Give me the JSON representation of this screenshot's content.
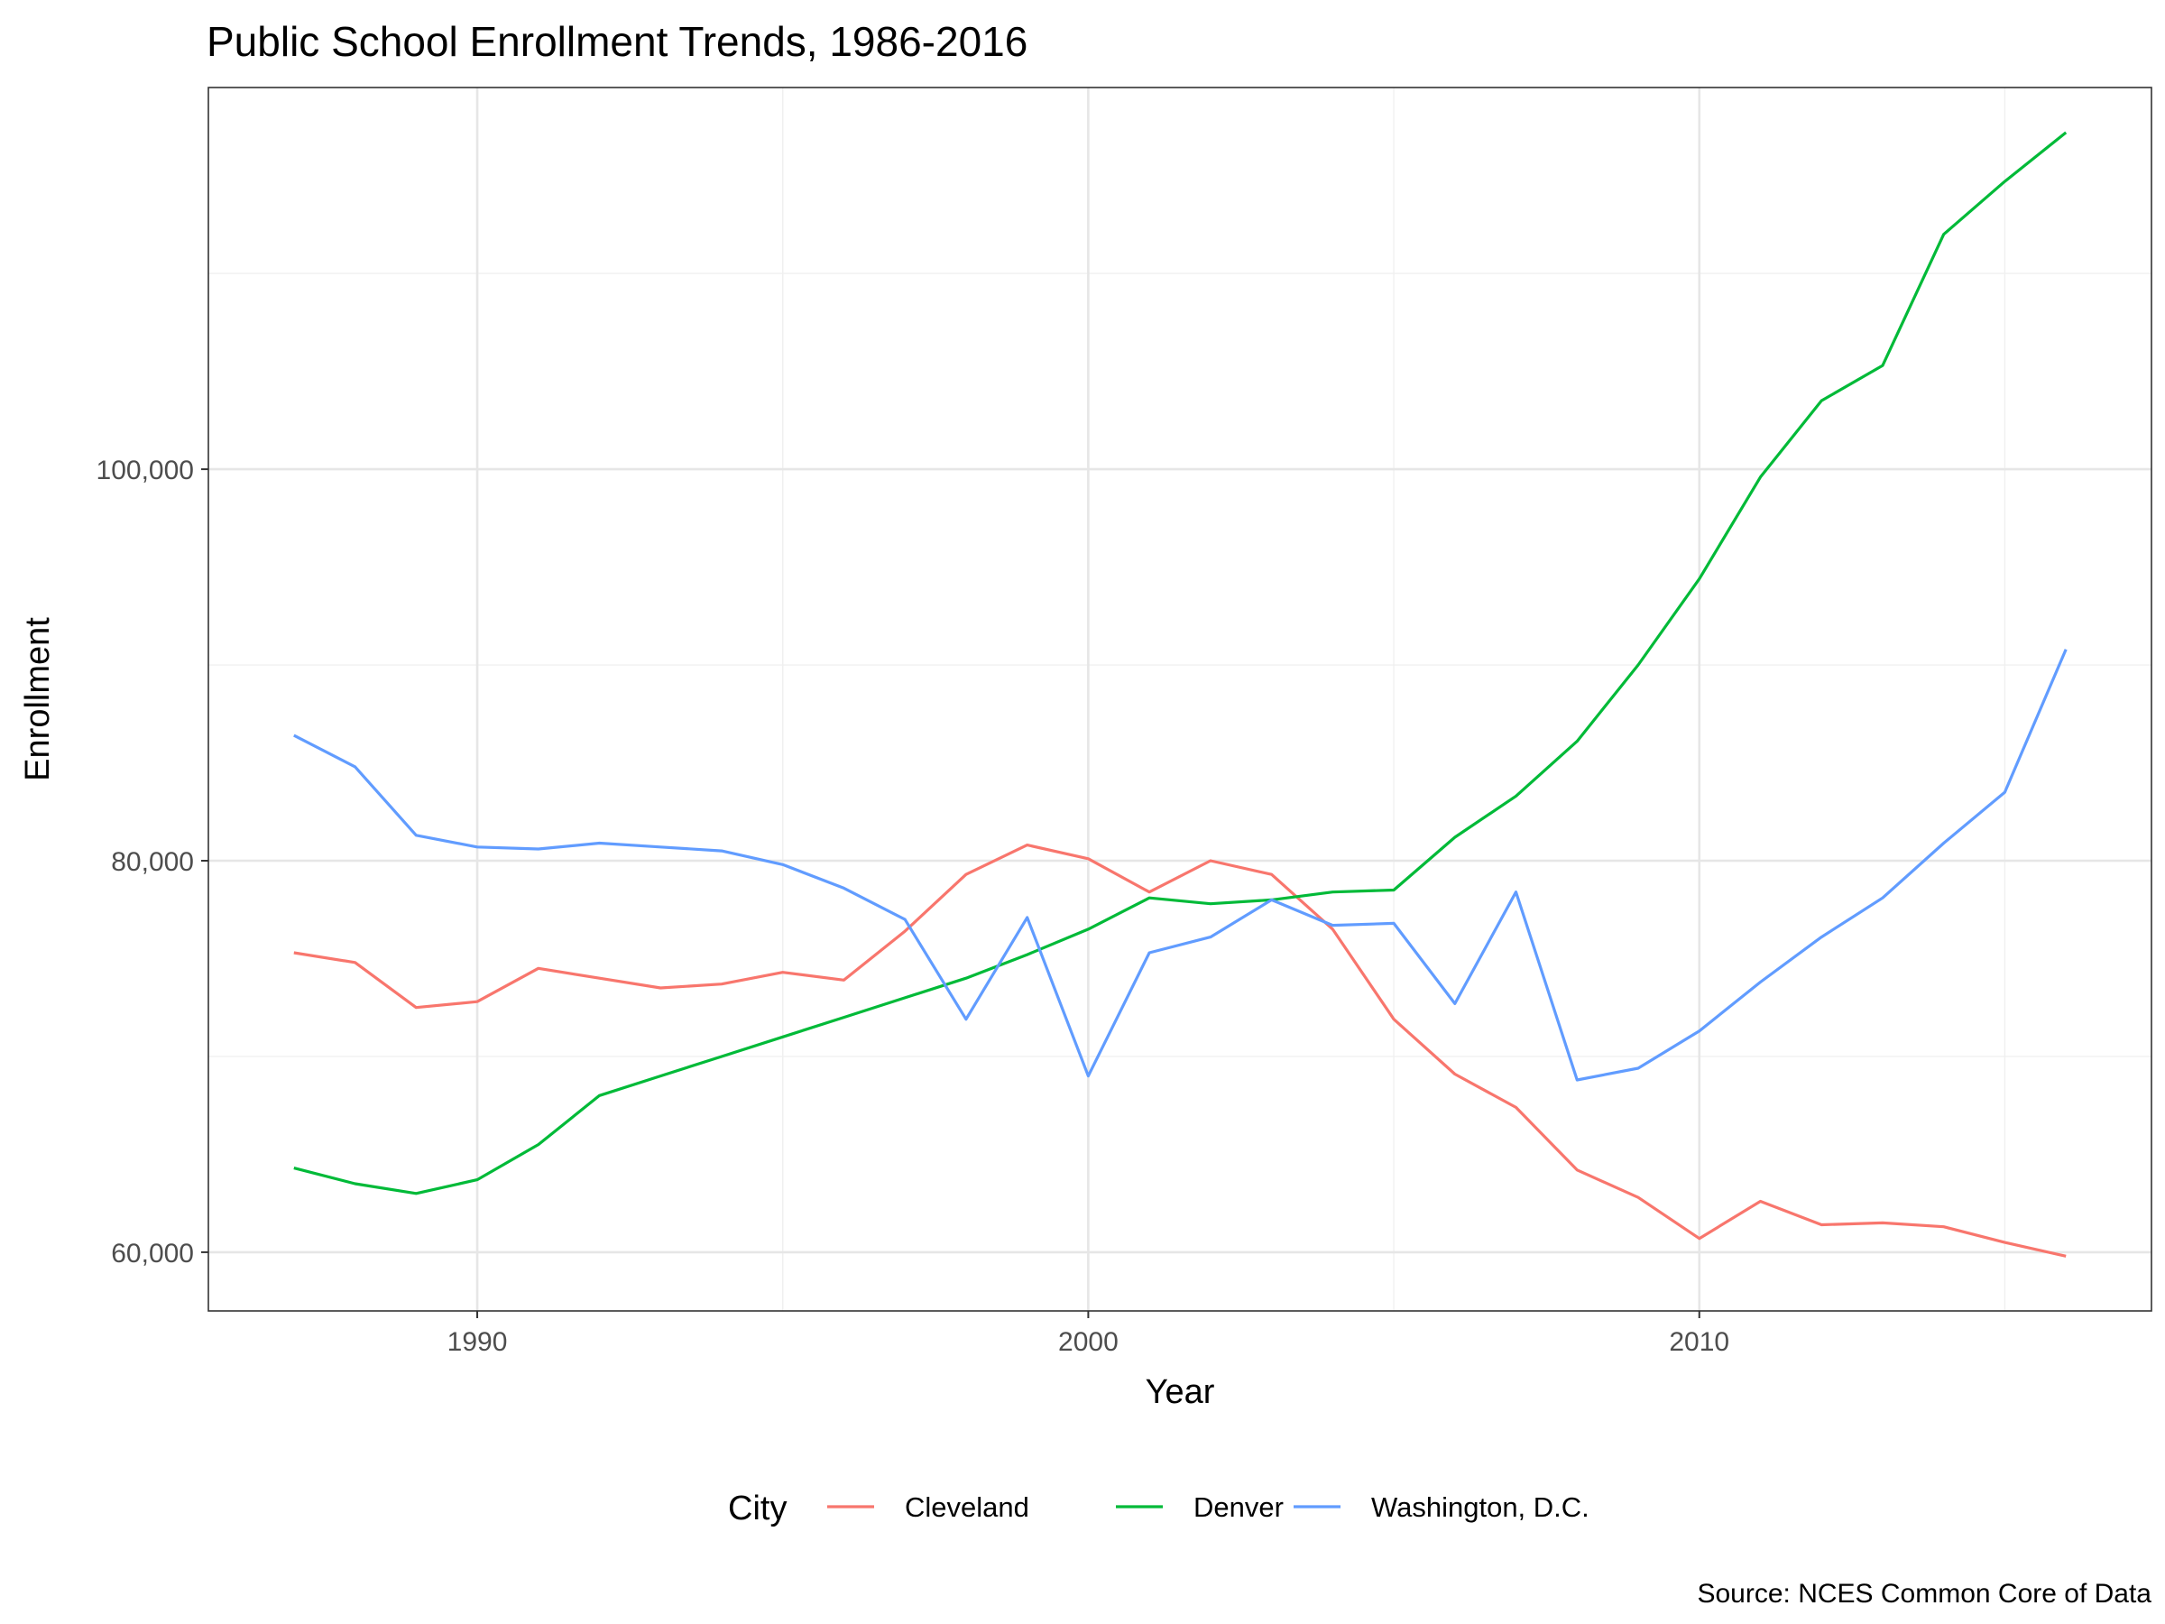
{
  "chart_data": {
    "type": "line",
    "title": "Public School Enrollment Trends, 1986-2016",
    "xlabel": "Year",
    "ylabel": "Enrollment",
    "caption": "Source: NCES Common Core of Data",
    "xlim": [
      1985.6,
      2017.4
    ],
    "ylim": [
      57000,
      119500
    ],
    "x_ticks": [
      1990,
      2000,
      2010
    ],
    "x_minor": [
      1995,
      2005,
      2015
    ],
    "y_ticks": [
      60000,
      80000,
      100000
    ],
    "y_tick_labels": [
      "60,000",
      "80,000",
      "100,000"
    ],
    "y_minor": [
      70000,
      90000,
      110000
    ],
    "grid": true,
    "legend": {
      "title": "City",
      "position": "bottom"
    },
    "x": [
      1987,
      1988,
      1989,
      1990,
      1991,
      1992,
      1993,
      1994,
      1995,
      1996,
      1997,
      1998,
      1999,
      2000,
      2001,
      2002,
      2003,
      2004,
      2005,
      2006,
      2007,
      2008,
      2009,
      2010,
      2011,
      2012,
      2013,
      2014,
      2015,
      2016
    ],
    "series": [
      {
        "name": "Cleveland",
        "color": "#f8766d",
        "values": [
          75300,
          74800,
          72500,
          72800,
          74500,
          74000,
          73500,
          73700,
          74300,
          73900,
          76400,
          79300,
          80800,
          80100,
          78400,
          80000,
          79300,
          76500,
          71900,
          69100,
          67400,
          64200,
          62800,
          60700,
          62600,
          61400,
          61500,
          61300,
          60500,
          59800
        ]
      },
      {
        "name": "Denver",
        "color": "#00ba38",
        "values": [
          64300,
          63500,
          63000,
          63700,
          65500,
          68000,
          69000,
          70000,
          71000,
          72000,
          73000,
          74000,
          75200,
          76500,
          78100,
          77800,
          78000,
          78400,
          78500,
          81200,
          83300,
          86100,
          90000,
          94400,
          99600,
          103500,
          105300,
          112000,
          114700,
          117200
        ]
      },
      {
        "name": "Washington, D.C.",
        "color": "#619cff",
        "values": [
          86400,
          84800,
          81300,
          80700,
          80600,
          80900,
          80700,
          80500,
          79800,
          78600,
          77000,
          71900,
          77100,
          69000,
          75300,
          76100,
          78000,
          76700,
          76800,
          72700,
          78400,
          68800,
          69400,
          71300,
          73800,
          76100,
          78100,
          80900,
          83500,
          90800
        ]
      }
    ]
  }
}
